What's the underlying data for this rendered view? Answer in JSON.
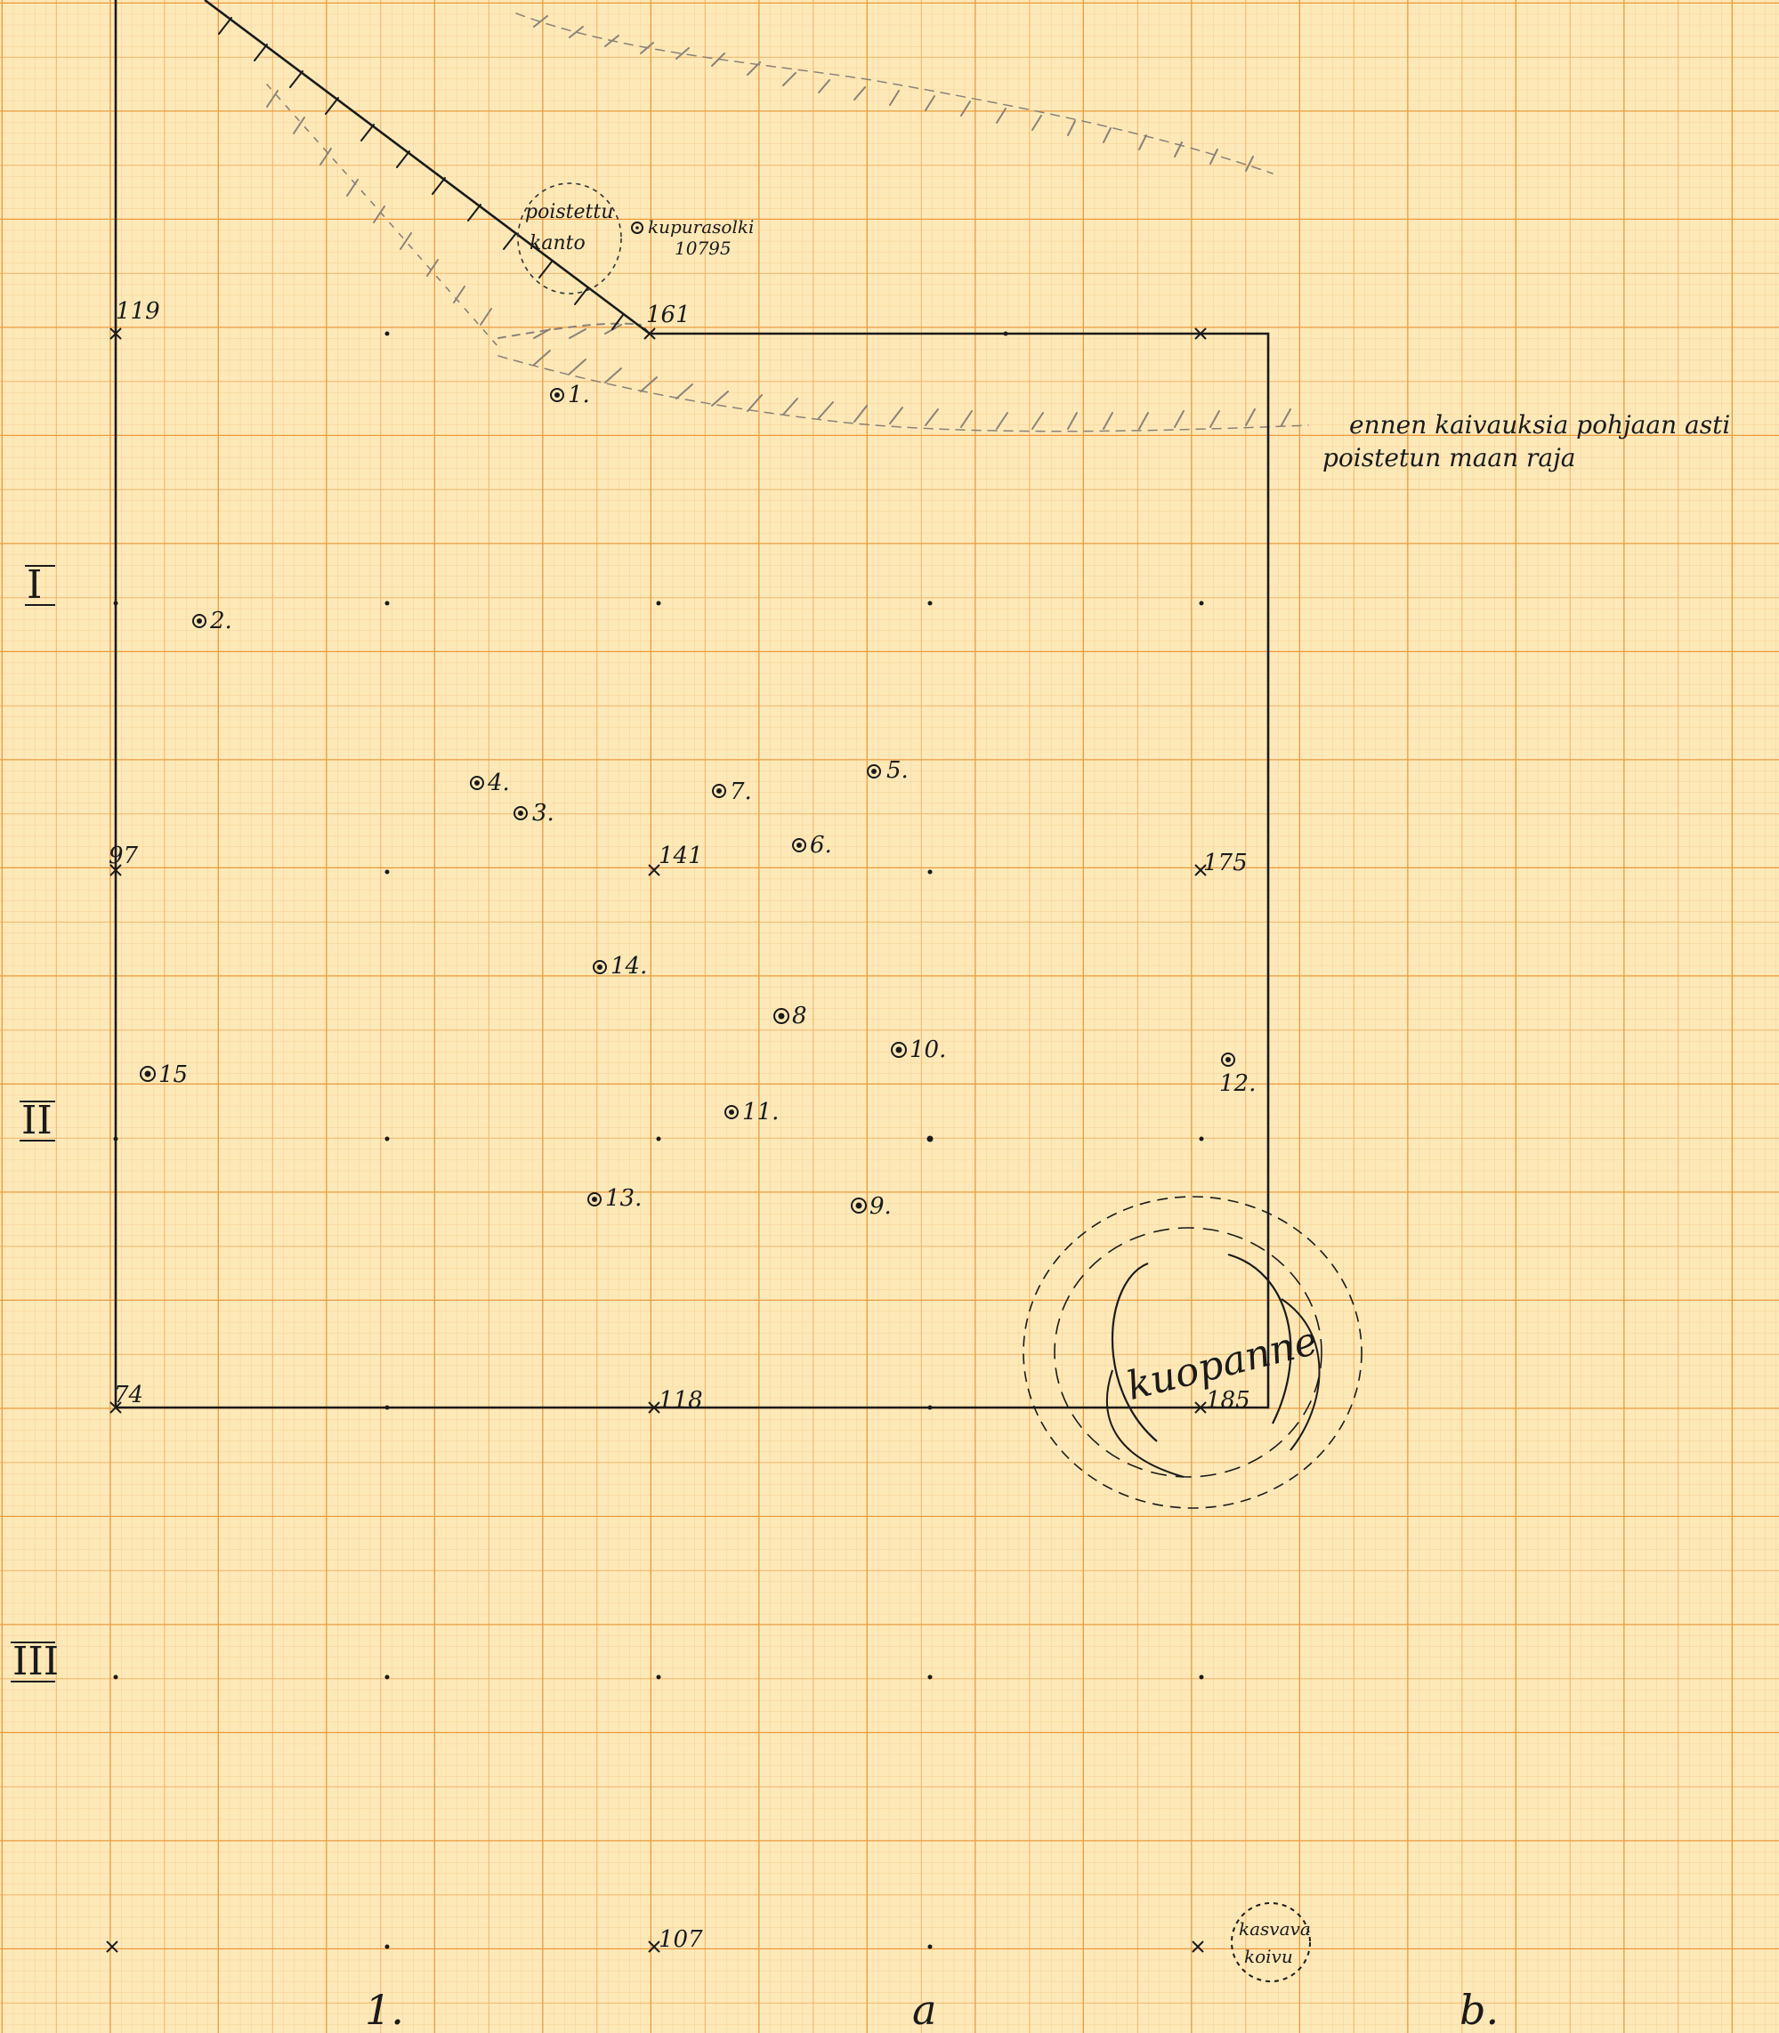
{
  "corner_labels": {
    "p119": "119",
    "p161": "161",
    "p97": "97",
    "p141": "141",
    "p175": "175",
    "p74": "74",
    "p118": "118",
    "p185": "185",
    "p107": "107"
  },
  "row_labels": {
    "I": "I",
    "II": "II",
    "III": "III"
  },
  "column_labels": {
    "c1": "1.",
    "ca": "a",
    "cb": "b."
  },
  "notes": {
    "stump_line1": "poistettu",
    "stump_line2": "kanto",
    "buckle_name": "kupurasolki",
    "buckle_number": "10795",
    "boundary_line1": "ennen kaivauksia pohjaan asti",
    "boundary_line2": "poistetun maan raja",
    "pit": "kuopanne",
    "birch_line1": "kasvava",
    "birch_line2": "koivu"
  },
  "finds": [
    "1.",
    "2.",
    "3.",
    "4.",
    "5.",
    "6.",
    "7.",
    "8",
    "9.",
    "10.",
    "11.",
    "12.",
    "13.",
    "14.",
    "15"
  ],
  "colors": {
    "paper": "#fde9b8",
    "grid_fine": "#f6c98a",
    "grid_mid": "#f2b36a",
    "grid_major": "#ee9c3f",
    "ink": "#1a1a1a"
  }
}
